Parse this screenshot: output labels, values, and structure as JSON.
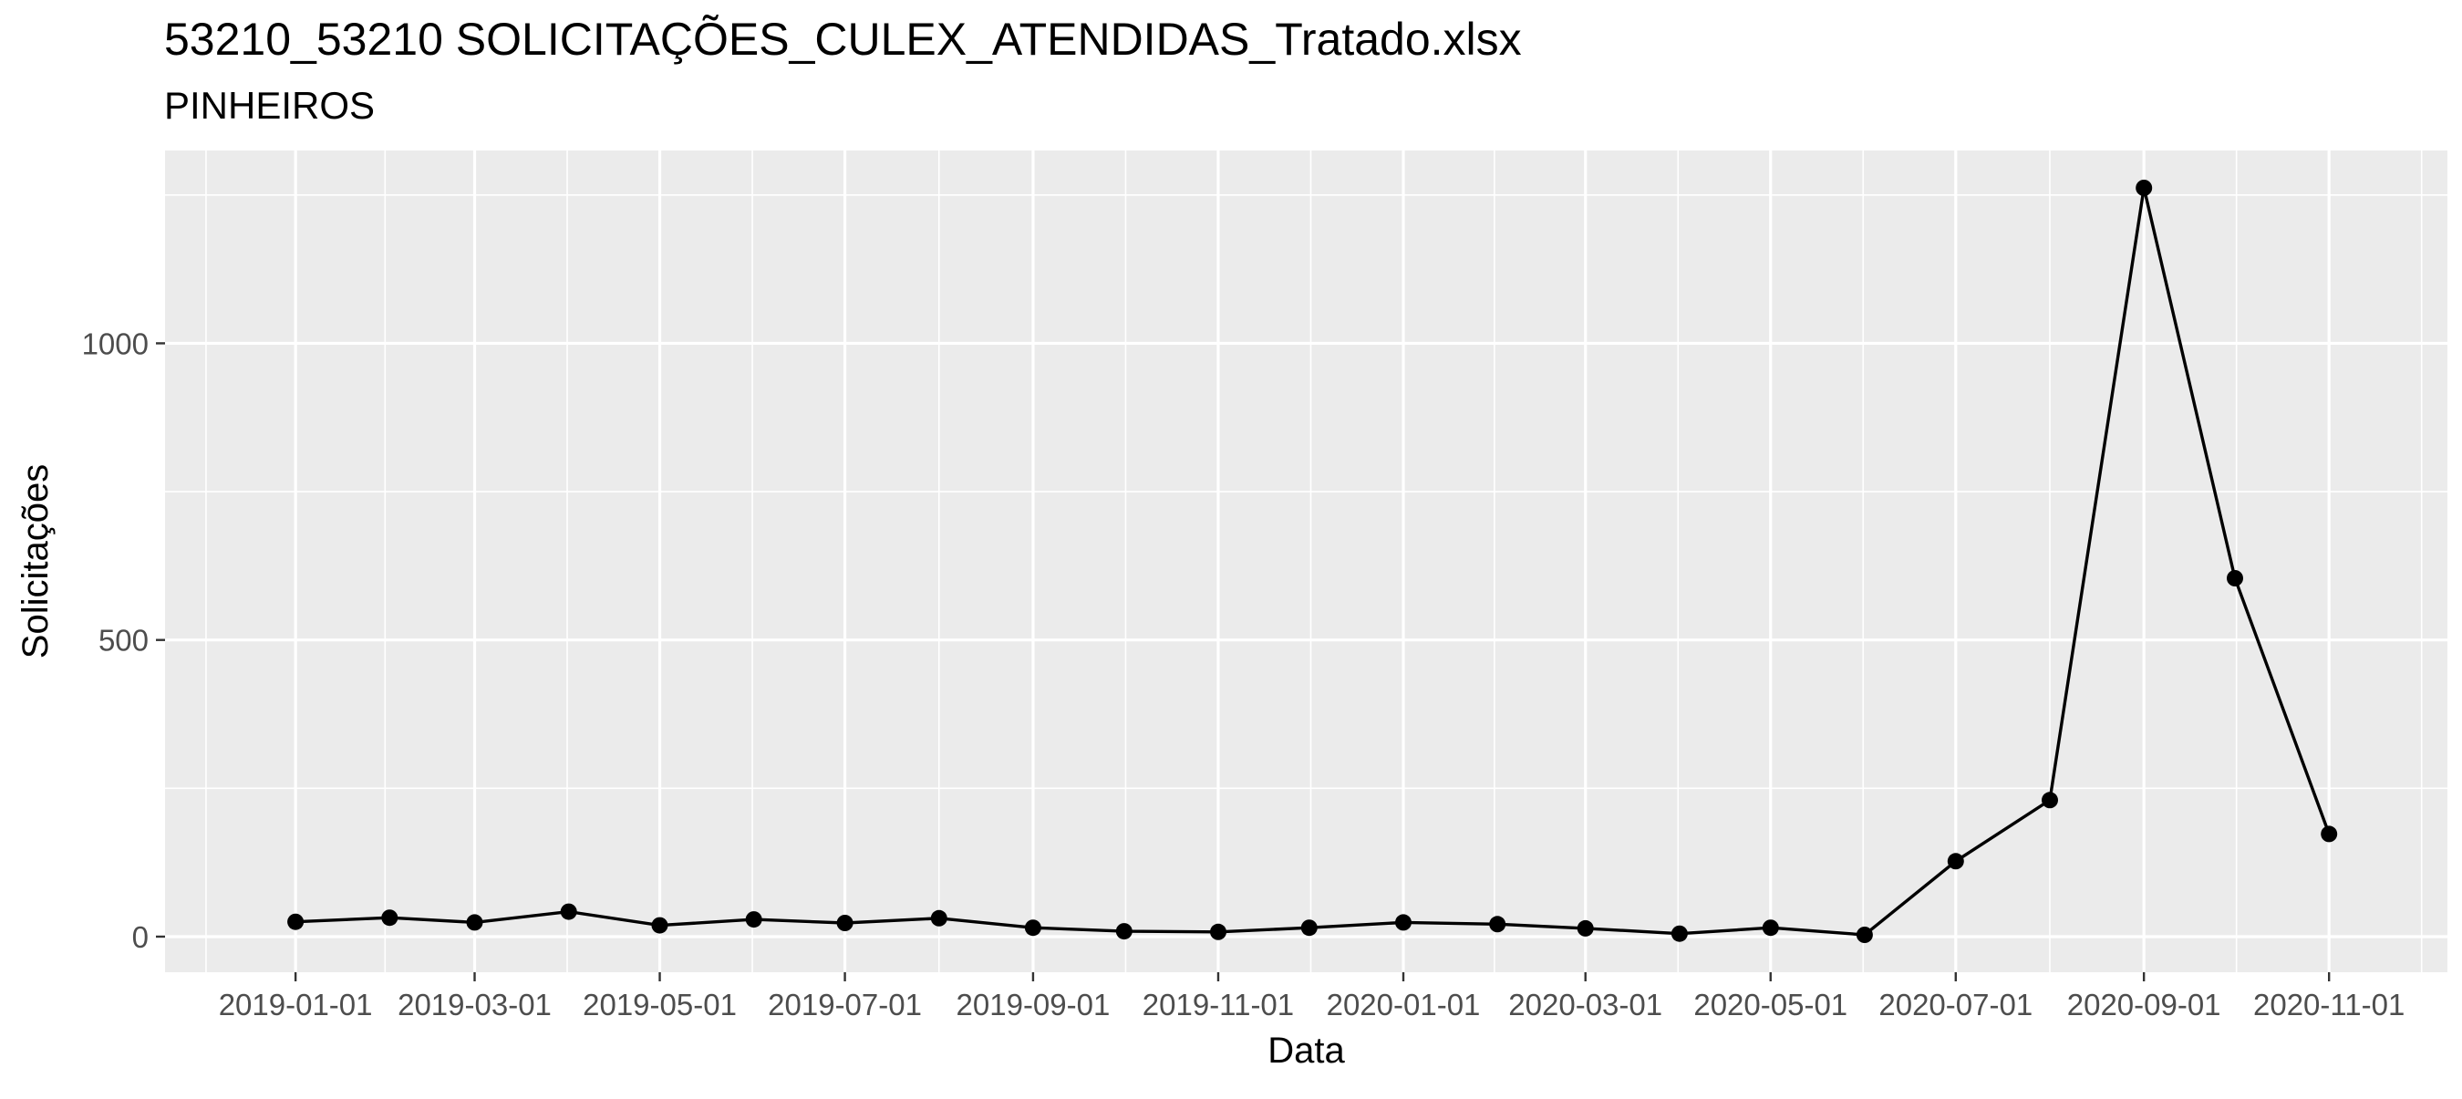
{
  "chart_data": {
    "type": "line",
    "title": "53210_53210 SOLICITAÇÕES_CULEX_ATENDIDAS_Tratado.xlsx",
    "subtitle": "PINHEIROS",
    "xlabel": "Data",
    "ylabel": "Solicitações",
    "x_tick_labels": [
      "2019-01-01",
      "2019-03-01",
      "2019-05-01",
      "2019-07-01",
      "2019-09-01",
      "2019-11-01",
      "2020-01-01",
      "2020-03-01",
      "2020-05-01",
      "2020-07-01",
      "2020-09-01",
      "2020-11-01"
    ],
    "y_tick_labels": [
      "0",
      "500",
      "1000"
    ],
    "y_ticks": [
      0,
      500,
      1000
    ],
    "ylim": [
      -60,
      1325
    ],
    "xlim": [
      "2018-11-19",
      "2020-12-10"
    ],
    "grid": true,
    "x": [
      "2019-01-01",
      "2019-02-01",
      "2019-03-01",
      "2019-04-01",
      "2019-05-01",
      "2019-06-01",
      "2019-07-01",
      "2019-08-01",
      "2019-09-01",
      "2019-10-01",
      "2019-11-01",
      "2019-12-01",
      "2020-01-01",
      "2020-02-01",
      "2020-03-01",
      "2020-04-01",
      "2020-05-01",
      "2020-06-01",
      "2020-07-01",
      "2020-08-01",
      "2020-09-01",
      "2020-10-01",
      "2020-11-01"
    ],
    "values": [
      25,
      32,
      24,
      42,
      19,
      29,
      23,
      31,
      15,
      9,
      8,
      15,
      24,
      21,
      14,
      5,
      15,
      3,
      127,
      230,
      1262,
      604,
      173
    ]
  }
}
